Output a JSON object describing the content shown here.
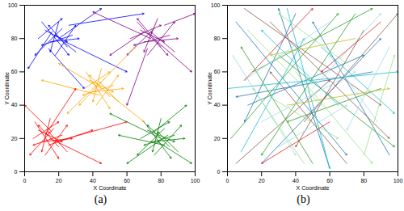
{
  "chart_data": [
    {
      "type": "vector",
      "label": "(a)",
      "xlabel": "X Coordinate",
      "ylabel": "Y Coordinate",
      "xlim": [
        0,
        100
      ],
      "ylim": [
        0,
        100
      ],
      "xticks": [
        0,
        20,
        40,
        60,
        80,
        100
      ],
      "yticks": [
        0,
        20,
        40,
        60,
        80,
        100
      ],
      "grid": false,
      "series": [
        {
          "color": "#0000ff",
          "segments": [
            [
              12,
              85,
              25,
              78
            ],
            [
              20,
              90,
              15,
              72
            ],
            [
              28,
              82,
              10,
              76
            ],
            [
              18,
              70,
              30,
              88
            ],
            [
              8,
              80,
              22,
              92
            ],
            [
              25,
              75,
              14,
              88
            ],
            [
              15,
              78,
              32,
              80
            ],
            [
              22,
              86,
              6,
              70
            ],
            [
              30,
              72,
              18,
              82
            ],
            [
              10,
              90,
              26,
              70
            ],
            [
              20,
              80,
              45,
              98
            ],
            [
              24,
              78,
              60,
              60
            ],
            [
              16,
              84,
              2,
              62
            ],
            [
              26,
              88,
              70,
              95
            ],
            [
              14,
              74,
              35,
              50
            ]
          ]
        },
        {
          "color": "#800080",
          "segments": [
            [
              68,
              85,
              82,
              78
            ],
            [
              78,
              92,
              70,
              72
            ],
            [
              85,
              82,
              64,
              76
            ],
            [
              72,
              70,
              88,
              90
            ],
            [
              62,
              80,
              80,
              88
            ],
            [
              80,
              75,
              66,
              92
            ],
            [
              70,
              78,
              90,
              80
            ],
            [
              76,
              86,
              60,
              70
            ],
            [
              88,
              72,
              74,
              84
            ],
            [
              66,
              90,
              84,
              70
            ],
            [
              74,
              80,
              40,
              96
            ],
            [
              78,
              78,
              98,
              60
            ],
            [
              70,
              84,
              50,
              70
            ],
            [
              82,
              88,
              100,
              95
            ],
            [
              72,
              74,
              60,
              40
            ]
          ]
        },
        {
          "color": "#ffa500",
          "segments": [
            [
              38,
              55,
              52,
              48
            ],
            [
              45,
              62,
              40,
              42
            ],
            [
              52,
              52,
              34,
              46
            ],
            [
              42,
              40,
              55,
              58
            ],
            [
              35,
              50,
              50,
              60
            ],
            [
              50,
              45,
              38,
              58
            ],
            [
              40,
              48,
              58,
              50
            ],
            [
              47,
              56,
              32,
              40
            ],
            [
              55,
              42,
              44,
              54
            ],
            [
              36,
              60,
              50,
              38
            ],
            [
              45,
              50,
              20,
              65
            ],
            [
              48,
              48,
              70,
              30
            ],
            [
              42,
              52,
              25,
              35
            ],
            [
              46,
              55,
              65,
              75
            ],
            [
              44,
              46,
              10,
              55
            ]
          ]
        },
        {
          "color": "#ff0000",
          "segments": [
            [
              8,
              25,
              22,
              18
            ],
            [
              15,
              32,
              10,
              12
            ],
            [
              22,
              22,
              5,
              16
            ],
            [
              12,
              10,
              25,
              28
            ],
            [
              5,
              20,
              20,
              30
            ],
            [
              20,
              15,
              8,
              28
            ],
            [
              10,
              18,
              28,
              20
            ],
            [
              17,
              26,
              3,
              10
            ],
            [
              25,
              12,
              14,
              24
            ],
            [
              6,
              30,
              20,
              8
            ],
            [
              15,
              20,
              45,
              5
            ],
            [
              18,
              18,
              60,
              30
            ],
            [
              12,
              22,
              30,
              50
            ],
            [
              16,
              24,
              0,
              40
            ],
            [
              14,
              16,
              40,
              25
            ]
          ]
        },
        {
          "color": "#008000",
          "segments": [
            [
              72,
              25,
              88,
              18
            ],
            [
              80,
              32,
              75,
              12
            ],
            [
              88,
              22,
              70,
              16
            ],
            [
              76,
              10,
              92,
              28
            ],
            [
              68,
              20,
              85,
              30
            ],
            [
              85,
              15,
              72,
              28
            ],
            [
              74,
              18,
              94,
              20
            ],
            [
              82,
              26,
              66,
              10
            ],
            [
              90,
              12,
              78,
              24
            ],
            [
              70,
              30,
              86,
              8
            ],
            [
              80,
              20,
              50,
              35
            ],
            [
              78,
              18,
              98,
              5
            ],
            [
              84,
              22,
              60,
              5
            ],
            [
              76,
              24,
              95,
              40
            ],
            [
              82,
              16,
              55,
              22
            ]
          ]
        }
      ]
    },
    {
      "type": "vector",
      "label": "(b)",
      "xlabel": "X Coordinate",
      "ylabel": "Y Coordinate",
      "xlim": [
        0,
        100
      ],
      "ylim": [
        0,
        100
      ],
      "xticks": [
        0,
        20,
        40,
        60,
        80,
        100
      ],
      "yticks": [
        0,
        20,
        40,
        60,
        80,
        100
      ],
      "grid": false,
      "series": [
        {
          "color": "#1f77b4",
          "segments": [
            [
              5,
              90,
              70,
              10
            ],
            [
              20,
              5,
              90,
              80
            ],
            [
              40,
              95,
              10,
              30
            ],
            [
              60,
              2,
              30,
              98
            ],
            [
              85,
              60,
              5,
              45
            ],
            [
              95,
              10,
              50,
              90
            ],
            [
              12,
              40,
              80,
              70
            ]
          ]
        },
        {
          "color": "#2ca02c",
          "segments": [
            [
              2,
              20,
              65,
              95
            ],
            [
              30,
              70,
              98,
              15
            ],
            [
              75,
              95,
              20,
              10
            ],
            [
              50,
              5,
              8,
              75
            ],
            [
              90,
              50,
              35,
              30
            ],
            [
              15,
              60,
              85,
              98
            ]
          ]
        },
        {
          "color": "#8c564b",
          "segments": [
            [
              10,
              98,
              90,
              40
            ],
            [
              45,
              30,
              100,
              95
            ],
            [
              70,
              5,
              25,
              60
            ],
            [
              5,
              5,
              60,
              55
            ],
            [
              80,
              85,
              40,
              15
            ],
            [
              25,
              90,
              95,
              20
            ]
          ]
        },
        {
          "color": "#17becf",
          "segments": [
            [
              35,
              98,
              60,
              2
            ],
            [
              0,
              50,
              100,
              60
            ],
            [
              65,
              40,
              20,
              85
            ],
            [
              55,
              75,
              98,
              35
            ],
            [
              8,
              12,
              45,
              80
            ]
          ]
        },
        {
          "color": "#9edae5",
          "segments": [
            [
              20,
              30,
              75,
              60
            ],
            [
              50,
              50,
              90,
              95
            ],
            [
              3,
              70,
              40,
              10
            ],
            [
              88,
              30,
              60,
              70
            ],
            [
              30,
              15,
              70,
              40
            ],
            [
              60,
              90,
              10,
              55
            ],
            [
              95,
              75,
              70,
              25
            ]
          ]
        },
        {
          "color": "#98df8a",
          "segments": [
            [
              40,
              60,
              85,
              5
            ],
            [
              12,
              85,
              55,
              40
            ],
            [
              70,
              65,
              30,
              95
            ],
            [
              25,
              45,
              65,
              20
            ],
            [
              80,
              10,
              98,
              70
            ],
            [
              45,
              5,
              15,
              50
            ]
          ]
        },
        {
          "color": "#d62728",
          "segments": [
            [
              10,
              55,
              50,
              98
            ],
            [
              60,
              30,
              20,
              5
            ],
            [
              90,
              90,
              55,
              60
            ]
          ]
        },
        {
          "color": "#bcbd22",
          "segments": [
            [
              35,
              40,
              95,
              50
            ],
            [
              75,
              80,
              25,
              70
            ]
          ]
        }
      ]
    }
  ]
}
